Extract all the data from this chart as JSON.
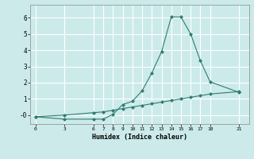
{
  "xlabel": "Humidex (Indice chaleur)",
  "bg_color": "#cceaea",
  "grid_color": "#ffffff",
  "line_color": "#2e7d6e",
  "x_ticks": [
    0,
    3,
    6,
    7,
    8,
    9,
    10,
    11,
    12,
    13,
    14,
    15,
    16,
    17,
    18,
    21
  ],
  "xlim": [
    -0.5,
    22
  ],
  "ylim": [
    -0.55,
    6.8
  ],
  "y_ticks": [
    0,
    1,
    2,
    3,
    4,
    5,
    6
  ],
  "y_tick_labels": [
    "-0",
    "1",
    "2",
    "3",
    "4",
    "5",
    "6"
  ],
  "line1_x": [
    0,
    3,
    6,
    7,
    8,
    9,
    10,
    11,
    12,
    13,
    14,
    15,
    16,
    17,
    18,
    21
  ],
  "line1_y": [
    -0.1,
    -0.25,
    -0.25,
    -0.25,
    0.05,
    0.65,
    0.85,
    1.5,
    2.6,
    3.9,
    6.05,
    6.05,
    5.0,
    3.35,
    2.05,
    1.4
  ],
  "line2_x": [
    0,
    3,
    6,
    7,
    8,
    9,
    10,
    11,
    12,
    13,
    14,
    15,
    16,
    17,
    18,
    21
  ],
  "line2_y": [
    -0.1,
    0.0,
    0.15,
    0.2,
    0.3,
    0.4,
    0.5,
    0.6,
    0.7,
    0.8,
    0.9,
    1.0,
    1.1,
    1.2,
    1.3,
    1.45
  ]
}
